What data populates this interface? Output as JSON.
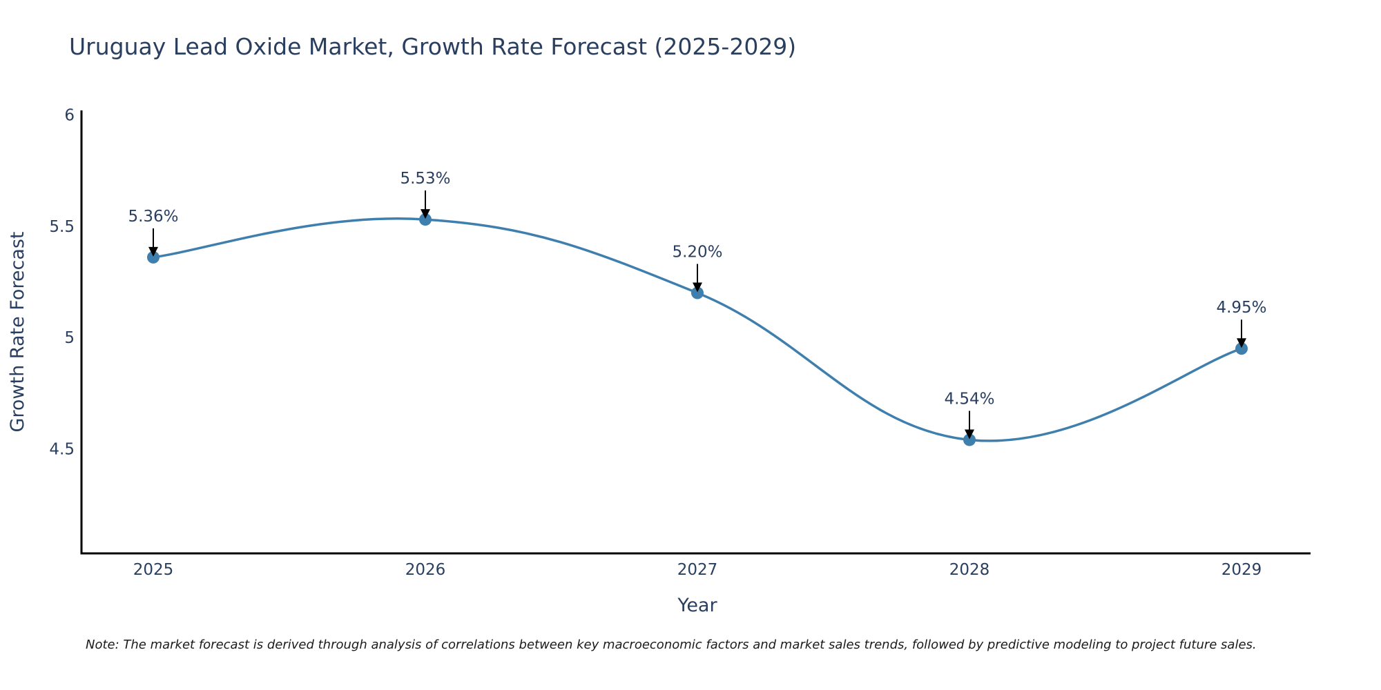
{
  "chart_data": {
    "type": "line",
    "title": "Uruguay Lead Oxide Market, Growth Rate Forecast (2025-2029)",
    "xlabel": "Year",
    "ylabel": "Growth Rate Forecast",
    "categories": [
      "2025",
      "2026",
      "2027",
      "2028",
      "2029"
    ],
    "series": [
      {
        "name": "Growth Rate Forecast",
        "values": [
          5.36,
          5.53,
          5.2,
          4.54,
          4.95
        ],
        "labels": [
          "5.36%",
          "5.53%",
          "5.20%",
          "4.54%",
          "4.95%"
        ],
        "color": "#3f7fae"
      }
    ],
    "ylim": [
      4.03,
      6.02
    ],
    "yticks": [
      4.5,
      5,
      5.5,
      6
    ],
    "ytick_labels": [
      "4.5",
      "5",
      "5.5",
      "6"
    ],
    "grid": false,
    "legend": "none"
  },
  "note": "Note: The market forecast is derived through analysis of correlations between key macroeconomic factors and market sales trends, followed by predictive modeling to project future sales."
}
